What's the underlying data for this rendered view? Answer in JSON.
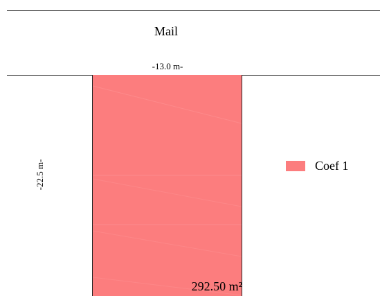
{
  "street": {
    "name": "Mail"
  },
  "lot": {
    "width_label": "-13.0 m-",
    "depth_label": "-22.5 m-",
    "area_label": "292.50 m²",
    "width_m": 13.0,
    "depth_m": 22.5,
    "area_m2": 292.5,
    "fill_color": "#fc7d7e"
  },
  "legend": {
    "items": [
      {
        "label": "Coef 1",
        "color": "#fc7d7e"
      }
    ]
  }
}
